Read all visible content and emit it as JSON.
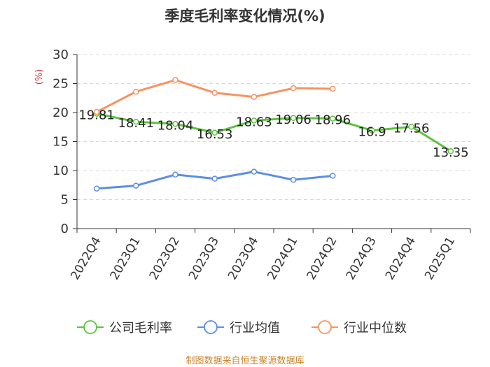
{
  "chart_data": {
    "type": "line",
    "title": "季度毛利率变化情况(%)",
    "ylabel": "(%)",
    "categories": [
      "2022Q4",
      "2023Q1",
      "2023Q2",
      "2023Q3",
      "2023Q4",
      "2024Q1",
      "2024Q2",
      "2024Q3",
      "2024Q4",
      "2025Q1"
    ],
    "ylim": [
      0,
      30
    ],
    "yticks": [
      0,
      5,
      10,
      15,
      20,
      25,
      30
    ],
    "grid": true,
    "legend_position": "bottom",
    "series": [
      {
        "name": "公司毛利率",
        "color": "#5ac43c",
        "values": [
          19.81,
          18.41,
          18.04,
          16.53,
          18.63,
          19.06,
          18.96,
          16.9,
          17.56,
          13.35
        ],
        "labels": [
          "19.81",
          "18.41",
          "18.04",
          "16.53",
          "18.63",
          "19.06",
          "18.96",
          "16.9",
          "17.56",
          "13.35"
        ]
      },
      {
        "name": "行业均值",
        "color": "#5b8ee6",
        "values": [
          6.9,
          7.4,
          9.3,
          8.6,
          9.8,
          8.4,
          9.1,
          null,
          null,
          null
        ]
      },
      {
        "name": "行业中位数",
        "color": "#f79361",
        "values": [
          20.1,
          23.6,
          25.6,
          23.4,
          22.7,
          24.2,
          24.1,
          null,
          null,
          null
        ]
      }
    ]
  },
  "source_note": "制图数据来自恒生聚源数据库"
}
